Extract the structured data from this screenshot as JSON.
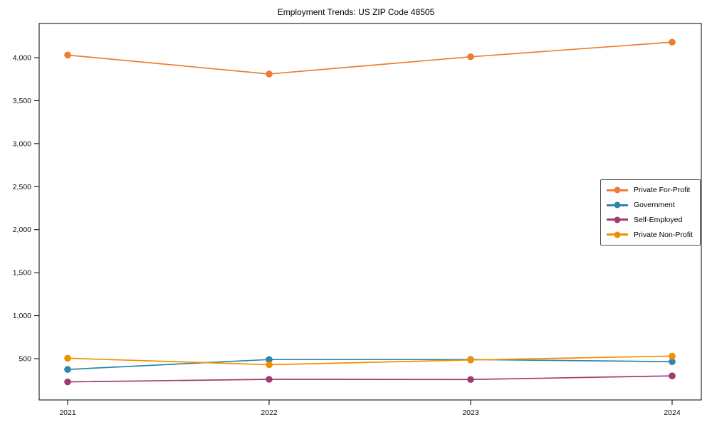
{
  "chart_data": {
    "type": "line",
    "title": "Employment Trends: US ZIP Code 48505",
    "categories": [
      "2021",
      "2022",
      "2023",
      "2024"
    ],
    "series": [
      {
        "name": "Private For-Profit",
        "color": "#ED7D31",
        "values": [
          4030,
          3810,
          4010,
          4180
        ]
      },
      {
        "name": "Government",
        "color": "#2E86AB",
        "values": [
          375,
          490,
          490,
          465
        ]
      },
      {
        "name": "Self-Employed",
        "color": "#A23B72",
        "values": [
          230,
          260,
          258,
          300
        ]
      },
      {
        "name": "Private Non-Profit",
        "color": "#F18F01",
        "values": [
          505,
          430,
          485,
          530
        ]
      }
    ],
    "xlabel": "",
    "ylabel": "",
    "ylim": [
      0,
      4400
    ],
    "y_ticks": [
      500,
      1000,
      1500,
      2000,
      2500,
      3000,
      3500,
      4000
    ],
    "y_tick_labels": [
      "500",
      "1,000",
      "1,500",
      "2,000",
      "2,500",
      "3,000",
      "3,500",
      "4,000"
    ],
    "grid": false,
    "marker": "circle",
    "legend_position": "right-middle"
  }
}
